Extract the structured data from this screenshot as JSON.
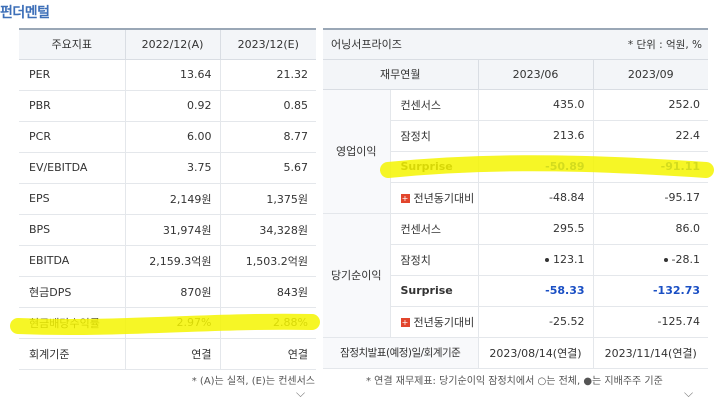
{
  "title": "펀더멘털",
  "left": {
    "headers": [
      "주요지표",
      "2022/12(A)",
      "2023/12(E)"
    ],
    "rows": [
      {
        "label": "PER",
        "a": "13.64",
        "e": "21.32"
      },
      {
        "label": "PBR",
        "a": "0.92",
        "e": "0.85"
      },
      {
        "label": "PCR",
        "a": "6.00",
        "e": "8.77"
      },
      {
        "label": "EV/EBITDA",
        "a": "3.75",
        "e": "5.67"
      },
      {
        "label": "EPS",
        "a": "2,149원",
        "e": "1,375원"
      },
      {
        "label": "BPS",
        "a": "31,974원",
        "e": "34,328원"
      },
      {
        "label": "EBITDA",
        "a": "2,159.3억원",
        "e": "1,503.2억원"
      },
      {
        "label": "현금DPS",
        "a": "870원",
        "e": "843원"
      },
      {
        "label": "현금배당수익률",
        "a": "2.97%",
        "e": "2.88%"
      },
      {
        "label": "회계기준",
        "a": "연결",
        "e": "연결"
      }
    ],
    "note": "* (A)는 실적, (E)는 컨센서스"
  },
  "right": {
    "company": "어닝서프라이즈",
    "unit": "* 단위 : 억원, %",
    "sub_headers": [
      "재무연월",
      "2023/06",
      "2023/09"
    ],
    "groups": [
      {
        "name": "영업이익",
        "rows": [
          {
            "label": "컨센서스",
            "v1": "435.0",
            "v2": "252.0"
          },
          {
            "label": "잠정치",
            "v1": "213.6",
            "v2": "22.4"
          },
          {
            "label": "Surprise",
            "v1": "-50.89",
            "v2": "-91.11"
          },
          {
            "label": "전년동기대비",
            "v1": "-48.84",
            "v2": "-95.17"
          }
        ]
      },
      {
        "name": "당기순이익",
        "rows": [
          {
            "label": "컨센서스",
            "v1": "295.5",
            "v2": "86.0"
          },
          {
            "label": "잠정치",
            "v1": "123.1",
            "v2": "-28.1"
          },
          {
            "label": "Surprise",
            "v1": "-58.33",
            "v2": "-132.73"
          },
          {
            "label": "전년동기대비",
            "v1": "-25.52",
            "v2": "-125.74"
          }
        ]
      }
    ],
    "footer_row": {
      "label": "잠정치발표(예정)일/회계기준",
      "v1": "2023/08/14(연결)",
      "v2": "2023/11/14(연결)"
    },
    "note": "* 연결 재무제표: 당기순이익 잠정치에서 ○는 전체, ●는 지배주주 기준"
  },
  "colors": {
    "title": "#3d6fb8",
    "negative": "#1a4fc4",
    "highlight": "#f4f400",
    "plus_icon": "#e2452c"
  },
  "icons": {
    "plus": "plus-box-icon",
    "expand": "chevron-down-icon"
  },
  "plus_glyph": "+",
  "chevron_glyph": "⌵"
}
